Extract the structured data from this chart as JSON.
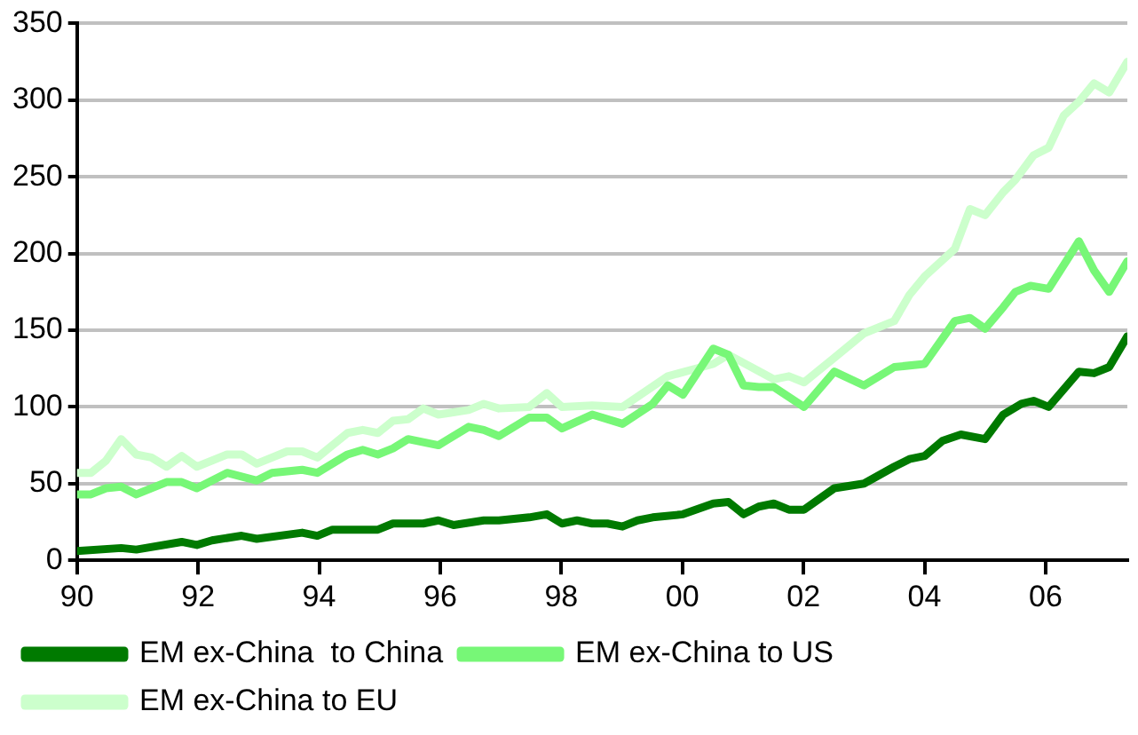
{
  "chart_data": {
    "type": "line",
    "xlim": [
      1990,
      2007.35
    ],
    "xticks": [
      {
        "value": 1990,
        "label": "90"
      },
      {
        "value": 1992,
        "label": "92"
      },
      {
        "value": 1994,
        "label": "94"
      },
      {
        "value": 1996,
        "label": "96"
      },
      {
        "value": 1998,
        "label": "98"
      },
      {
        "value": 2000,
        "label": "00"
      },
      {
        "value": 2002,
        "label": "02"
      },
      {
        "value": 2004,
        "label": "04"
      },
      {
        "value": 2006,
        "label": "06"
      }
    ],
    "ylim": [
      0,
      350
    ],
    "yticks": [
      0,
      50,
      100,
      150,
      200,
      250,
      300,
      350
    ],
    "grid": "y",
    "legend": "bottom",
    "marker": "none",
    "line_style": "solid",
    "series": [
      {
        "name": "EM ex-China  to China",
        "color": "#007a00",
        "x": [
          1990,
          1990.73,
          1990.98,
          1991.73,
          1991.98,
          1992.23,
          1992.72,
          1992.97,
          1993.72,
          1993.97,
          1994.22,
          1994.97,
          1995.22,
          1995.72,
          1995.97,
          1996.22,
          1996.72,
          1996.97,
          1997.47,
          1997.76,
          1998.01,
          1998.26,
          1998.51,
          1998.76,
          1999.01,
          1999.26,
          1999.51,
          2000.01,
          2000.51,
          2000.76,
          2001.01,
          2001.26,
          2001.51,
          2001.76,
          2002.01,
          2002.51,
          2003.0,
          2003.5,
          2003.75,
          2004.0,
          2004.3,
          2004.6,
          2005.0,
          2005.3,
          2005.6,
          2005.8,
          2006.05,
          2006.55,
          2006.8,
          2007.05,
          2007.35
        ],
        "values": [
          6,
          8,
          7,
          12,
          10,
          13,
          16,
          14,
          18,
          16,
          20,
          20,
          24,
          24,
          26,
          23,
          26,
          26,
          28,
          30,
          24,
          26,
          24,
          24,
          22,
          26,
          28,
          30,
          37,
          38,
          30,
          35,
          37,
          33,
          33,
          47,
          50,
          61,
          66,
          68,
          78,
          82,
          79,
          95,
          102,
          104,
          100,
          123,
          122,
          126,
          146
        ]
      },
      {
        "name": "EM ex-China to US",
        "color": "#77f777",
        "x": [
          1990,
          1990.23,
          1990.48,
          1990.73,
          1990.98,
          1991.48,
          1991.73,
          1991.98,
          1992.48,
          1992.97,
          1993.22,
          1993.72,
          1993.97,
          1994.47,
          1994.72,
          1994.97,
          1995.22,
          1995.47,
          1995.97,
          1996.47,
          1996.72,
          1996.97,
          1997.47,
          1997.76,
          1998.01,
          1998.51,
          1999.01,
          1999.51,
          1999.76,
          2000.01,
          2000.51,
          2000.76,
          2001.01,
          2001.26,
          2001.51,
          2002.01,
          2002.51,
          2003.0,
          2003.5,
          2004.0,
          2004.5,
          2004.75,
          2005.0,
          2005.3,
          2005.5,
          2005.75,
          2006.05,
          2006.55,
          2006.8,
          2007.05,
          2007.35
        ],
        "values": [
          43,
          43,
          47,
          48,
          43,
          51,
          51,
          47,
          57,
          52,
          57,
          59,
          57,
          69,
          72,
          69,
          73,
          79,
          75,
          87,
          85,
          81,
          93,
          93,
          86,
          95,
          89,
          102,
          114,
          108,
          138,
          134,
          114,
          113,
          113,
          100,
          123,
          114,
          126,
          128,
          156,
          158,
          151,
          165,
          175,
          179,
          177,
          208,
          189,
          175,
          195
        ]
      },
      {
        "name": "EM ex-China to EU",
        "color": "#ccffcc",
        "x": [
          1990,
          1990.23,
          1990.48,
          1990.73,
          1990.98,
          1991.23,
          1991.48,
          1991.73,
          1991.98,
          1992.48,
          1992.72,
          1992.97,
          1993.47,
          1993.72,
          1993.97,
          1994.47,
          1994.72,
          1994.97,
          1995.22,
          1995.47,
          1995.72,
          1995.97,
          1996.47,
          1996.72,
          1996.97,
          1997.47,
          1997.76,
          1998.01,
          1998.51,
          1999.01,
          1999.76,
          2000.51,
          2000.76,
          2001.51,
          2001.76,
          2002.01,
          2002.51,
          2003.0,
          2003.5,
          2003.75,
          2004.0,
          2004.5,
          2004.75,
          2005.0,
          2005.3,
          2005.5,
          2005.8,
          2006.05,
          2006.3,
          2006.55,
          2006.8,
          2007.05,
          2007.35
        ],
        "values": [
          57,
          57,
          65,
          79,
          69,
          67,
          61,
          68,
          61,
          69,
          69,
          63,
          71,
          71,
          67,
          83,
          85,
          83,
          91,
          92,
          99,
          95,
          98,
          102,
          99,
          100,
          109,
          100,
          101,
          100,
          120,
          128,
          134,
          118,
          120,
          116,
          132,
          148,
          156,
          173,
          185,
          203,
          229,
          225,
          240,
          248,
          264,
          269,
          290,
          299,
          311,
          305,
          325
        ]
      }
    ]
  }
}
